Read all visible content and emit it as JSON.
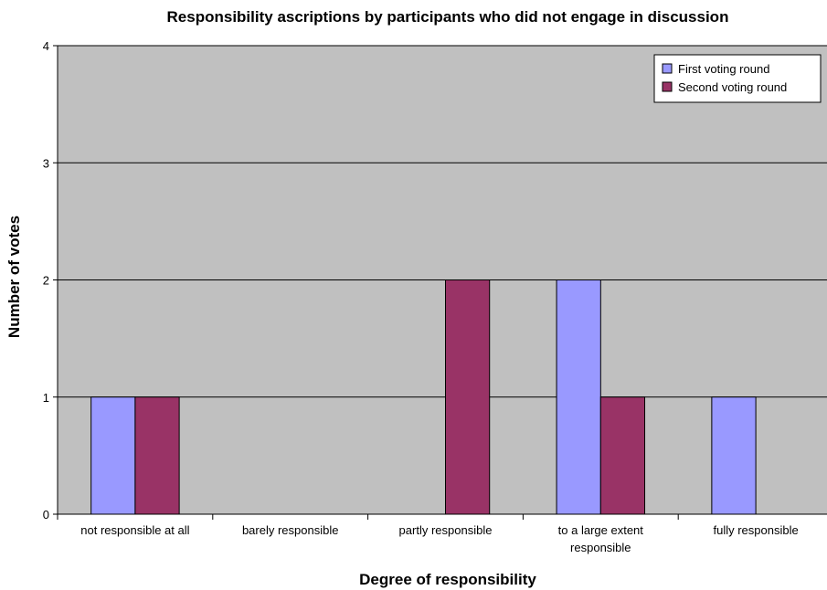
{
  "chart_data": {
    "type": "bar",
    "title": "Responsibility ascriptions by participants who did not engage in discussion",
    "xlabel": "Degree of responsibility",
    "ylabel": "Number of votes",
    "categories": [
      [
        "not responsible at all"
      ],
      [
        "barely responsible"
      ],
      [
        "partly responsible"
      ],
      [
        "to a large extent",
        "responsible"
      ],
      [
        "fully responsible"
      ]
    ],
    "series": [
      {
        "name": "First voting round",
        "color": "#9999ff",
        "values": [
          1,
          0,
          0,
          2,
          1
        ]
      },
      {
        "name": "Second voting round",
        "color": "#993366",
        "values": [
          1,
          0,
          2,
          1,
          0
        ]
      }
    ],
    "ylim": [
      0,
      4
    ],
    "yticks": [
      "0",
      "1",
      "2",
      "3",
      "4"
    ],
    "grid": true,
    "plot_background": "#c0c0c0",
    "legend_position": "top-right"
  }
}
